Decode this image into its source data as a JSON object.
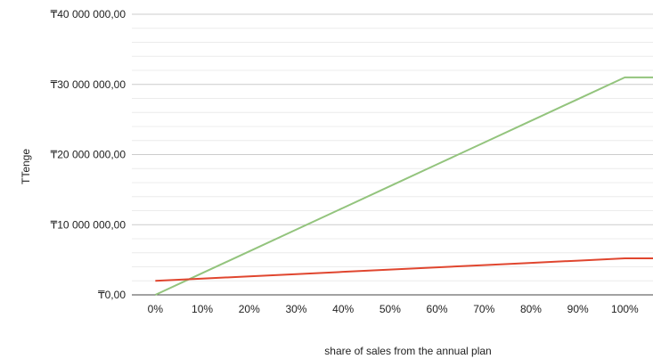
{
  "chart_data": {
    "type": "line",
    "title": "",
    "xlabel": "share of sales from the annual plan",
    "ylabel": "TTenge",
    "categories": [
      "0%",
      "10%",
      "20%",
      "30%",
      "40%",
      "50%",
      "60%",
      "70%",
      "80%",
      "90%",
      "100%"
    ],
    "x": [
      0,
      10,
      20,
      30,
      40,
      50,
      60,
      70,
      80,
      90,
      100,
      106
    ],
    "series": [
      {
        "color": "#93c47d",
        "values": [
          0,
          3100000,
          6200000,
          9300000,
          12400000,
          15500000,
          18600000,
          21700000,
          24800000,
          27900000,
          31000000,
          31000000
        ]
      },
      {
        "color": "#e0462f",
        "values": [
          2000000,
          2320000,
          2640000,
          2960000,
          3280000,
          3600000,
          3920000,
          4240000,
          4560000,
          4880000,
          5200000,
          5200000
        ]
      }
    ],
    "yticks": [
      0,
      10000000,
      20000000,
      30000000,
      40000000
    ],
    "ytick_labels": [
      "₸0,00",
      "₸10 000 000,00",
      "₸20 000 000,00",
      "₸30 000 000,00",
      "₸40 000 000,00"
    ],
    "ylim": [
      0,
      40000000
    ],
    "xlim": [
      -5,
      106
    ],
    "grid": true,
    "legend": "none"
  }
}
